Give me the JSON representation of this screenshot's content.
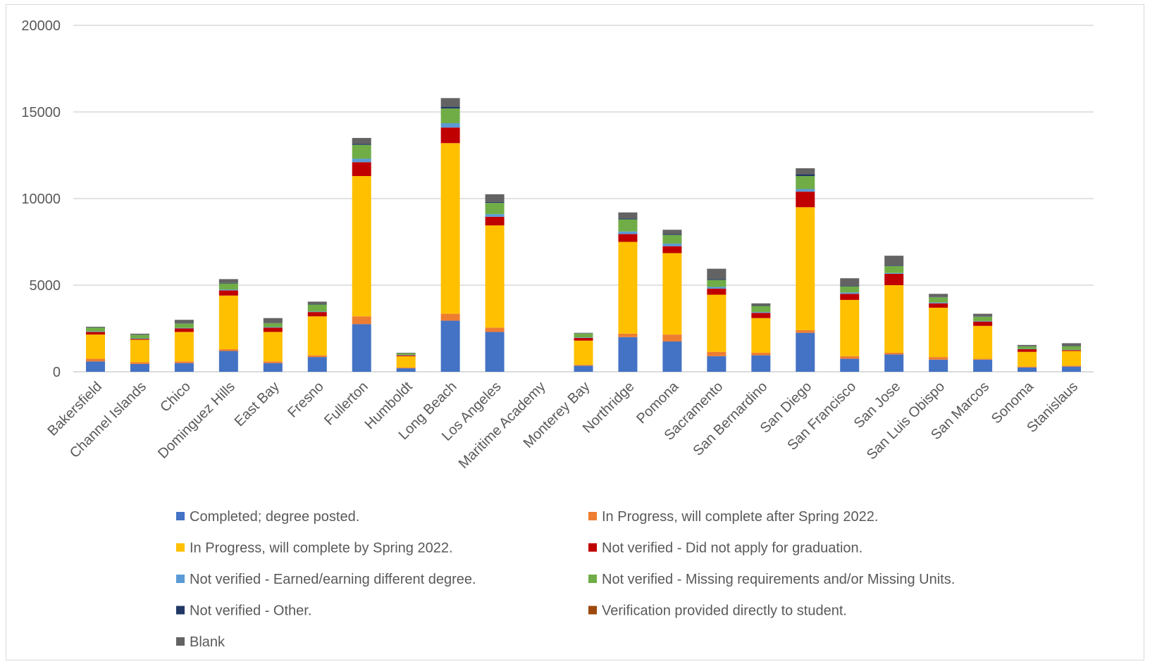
{
  "chart_data": {
    "type": "bar",
    "stacked": true,
    "title": "",
    "xlabel": "",
    "ylabel": "",
    "ylim": [
      0,
      20000
    ],
    "yticks": [
      0,
      5000,
      10000,
      15000,
      20000
    ],
    "grid": true,
    "legend_position": "bottom",
    "categories": [
      "Bakersfield",
      "Channel Islands",
      "Chico",
      "Dominguez Hills",
      "East Bay",
      "Fresno",
      "Fullerton",
      "Humboldt",
      "Long Beach",
      "Los Angeles",
      "Maritime Academy",
      "Monterey Bay",
      "Northridge",
      "Pomona",
      "Sacramento",
      "San Bernardino",
      "San Diego",
      "San Francisco",
      "San Jose",
      "San Luis Obispo",
      "San Marcos",
      "Sonoma",
      "Stanislaus"
    ],
    "series": [
      {
        "name": "Completed; degree posted.",
        "color": "#4472C4",
        "values": [
          600,
          450,
          500,
          1200,
          500,
          850,
          2750,
          200,
          2950,
          2300,
          0,
          350,
          2000,
          1750,
          900,
          950,
          2250,
          750,
          1000,
          700,
          700,
          250,
          300
        ]
      },
      {
        "name": "In Progress, will complete after Spring 2022.",
        "color": "#ED7D31",
        "values": [
          150,
          100,
          100,
          100,
          100,
          100,
          450,
          50,
          400,
          250,
          0,
          50,
          200,
          400,
          250,
          150,
          150,
          150,
          100,
          150,
          50,
          50,
          50
        ]
      },
      {
        "name": "In Progress, will complete by Spring 2022.",
        "color": "#FFC000",
        "values": [
          1400,
          1300,
          1700,
          3100,
          1700,
          2250,
          8100,
          650,
          9850,
          5900,
          0,
          1400,
          5300,
          4700,
          3300,
          2000,
          7100,
          3250,
          3900,
          2850,
          1900,
          850,
          850
        ]
      },
      {
        "name": "Not verified - Did not apply for graduation.",
        "color": "#C00000",
        "values": [
          150,
          50,
          200,
          300,
          250,
          250,
          800,
          50,
          900,
          500,
          0,
          150,
          450,
          400,
          350,
          300,
          900,
          350,
          650,
          250,
          250,
          150,
          50
        ]
      },
      {
        "name": "Not verified - Earned/earning different degree.",
        "color": "#5B9BD5",
        "values": [
          30,
          30,
          30,
          50,
          30,
          30,
          200,
          20,
          250,
          150,
          0,
          30,
          150,
          150,
          100,
          50,
          150,
          80,
          50,
          50,
          30,
          20,
          20
        ]
      },
      {
        "name": "Not verified - Missing requirements and/or Missing Units.",
        "color": "#70AD47",
        "values": [
          220,
          200,
          250,
          350,
          220,
          400,
          800,
          100,
          850,
          650,
          0,
          230,
          700,
          500,
          400,
          350,
          750,
          350,
          400,
          300,
          250,
          140,
          200
        ]
      },
      {
        "name": "Not verified - Other.",
        "color": "#203864",
        "values": [
          10,
          10,
          10,
          30,
          10,
          20,
          50,
          5,
          100,
          50,
          0,
          10,
          50,
          50,
          50,
          20,
          100,
          30,
          30,
          20,
          20,
          10,
          10
        ]
      },
      {
        "name": "Verification provided directly to student.",
        "color": "#9E480E",
        "values": [
          0,
          0,
          0,
          0,
          0,
          0,
          0,
          0,
          0,
          0,
          0,
          0,
          0,
          0,
          0,
          0,
          0,
          0,
          0,
          0,
          0,
          0,
          0
        ]
      },
      {
        "name": "Blank",
        "color": "#636363",
        "values": [
          40,
          60,
          210,
          220,
          290,
          150,
          350,
          25,
          500,
          450,
          0,
          30,
          350,
          250,
          600,
          130,
          350,
          440,
          570,
          180,
          150,
          80,
          170
        ]
      }
    ]
  }
}
